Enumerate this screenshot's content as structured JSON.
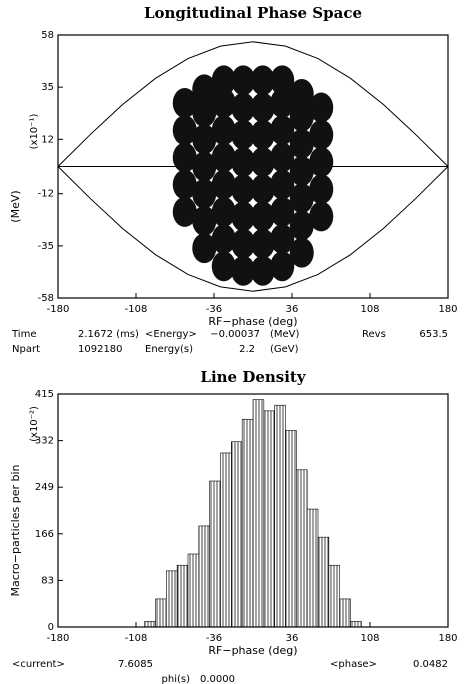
{
  "chart_data": [
    {
      "type": "phase-space",
      "title": "Longitudinal Phase Space",
      "xlabel": "RF−phase (deg)",
      "ylabel": "(MeV)",
      "ylabel_scale": "(x10⁻¹)",
      "xlim": [
        -180,
        180
      ],
      "xticks": [
        -180,
        -108,
        -36,
        36,
        108,
        180
      ],
      "ylim": [
        -58,
        58
      ],
      "yticks": [
        -58,
        -35,
        -12,
        12,
        35,
        58
      ],
      "series": [
        {
          "type": "line",
          "color": "#000000",
          "x": [
            -180,
            -150,
            -120,
            -90,
            -60,
            -30,
            0,
            30,
            60,
            90,
            120,
            150,
            180
          ],
          "values": [
            0,
            14.2,
            27.5,
            38.9,
            47.6,
            53.1,
            55,
            53.1,
            47.6,
            38.9,
            27.5,
            14.2,
            0
          ]
        },
        {
          "type": "line",
          "color": "#000000",
          "x": [
            -180,
            -150,
            -120,
            -90,
            -60,
            -30,
            0,
            30,
            60,
            90,
            120,
            150,
            180
          ],
          "values": [
            0,
            -14.2,
            -27.5,
            -38.9,
            -47.6,
            -53.1,
            -55,
            -53.1,
            -47.6,
            -38.9,
            -27.5,
            -14.2,
            0
          ]
        },
        {
          "type": "line",
          "color": "#000000",
          "x": [
            -180,
            180
          ],
          "values": [
            0,
            0
          ]
        },
        {
          "type": "scatter",
          "color": "#111111",
          "x": [
            -63,
            -63,
            -63,
            -63,
            -63,
            -45,
            -45,
            -45,
            -45,
            -45,
            -45,
            -45,
            -27,
            -27,
            -27,
            -27,
            -27,
            -27,
            -27,
            -27,
            -9,
            -9,
            -9,
            -9,
            -9,
            -9,
            -9,
            -9,
            9,
            9,
            9,
            9,
            9,
            9,
            9,
            9,
            27,
            27,
            27,
            27,
            27,
            27,
            27,
            27,
            45,
            45,
            45,
            45,
            45,
            45,
            45,
            63,
            63,
            63,
            63,
            63
          ],
          "values": [
            -20,
            -8,
            4,
            16,
            28,
            -36,
            -24,
            -12,
            0,
            12,
            24,
            34,
            -44,
            -32,
            -20,
            -8,
            4,
            16,
            28,
            38,
            -46,
            -34,
            -22,
            -10,
            2,
            14,
            26,
            38,
            -46,
            -34,
            -22,
            -10,
            2,
            14,
            26,
            38,
            -44,
            -32,
            -20,
            -8,
            4,
            16,
            28,
            38,
            -38,
            -26,
            -14,
            -2,
            10,
            22,
            32,
            -22,
            -10,
            2,
            14,
            26
          ]
        }
      ]
    },
    {
      "type": "histogram",
      "title": "Line Density",
      "xlabel": "RF−phase (deg)",
      "ylabel": "Macro−particles per bin",
      "ylabel_scale": "(x10⁻²)",
      "xlim": [
        -180,
        180
      ],
      "xticks": [
        -180,
        -108,
        -36,
        36,
        108,
        180
      ],
      "ylim": [
        0,
        415
      ],
      "yticks": [
        0,
        83,
        166,
        249,
        332,
        415
      ],
      "color": "#000000",
      "bins": [
        -100,
        -90,
        -80,
        -70,
        -60,
        -50,
        -40,
        -30,
        -20,
        -10,
        0,
        10,
        20,
        30,
        40,
        50,
        60,
        70,
        80,
        90,
        100
      ],
      "values": [
        10,
        50,
        100,
        110,
        130,
        180,
        260,
        310,
        330,
        370,
        405,
        385,
        395,
        350,
        280,
        210,
        160,
        110,
        50,
        10
      ]
    }
  ],
  "info_top": [
    [
      "Time",
      "2.1672 (ms)",
      "<Energy>",
      "−0.00037",
      "(MeV)",
      "Revs",
      "653.5"
    ],
    [
      "Npart",
      "1092180",
      "Energy(s)",
      "2.2",
      "(GeV)"
    ]
  ],
  "info_bottom": [
    [
      "<current>",
      "7.6085",
      "<phase>",
      "0.0482"
    ],
    [
      "phi(s)",
      "0.0000"
    ]
  ]
}
